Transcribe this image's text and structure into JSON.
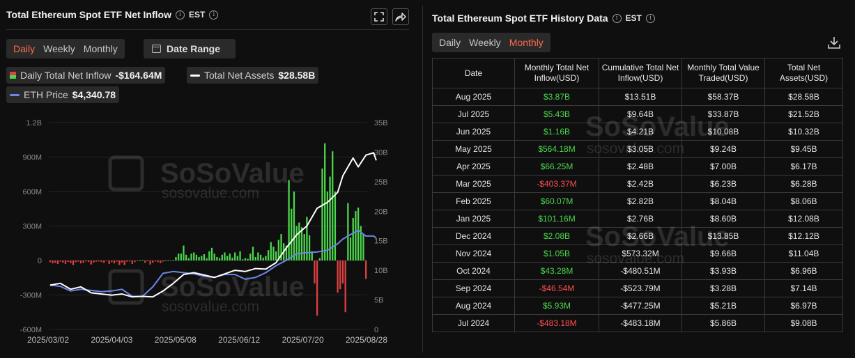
{
  "left": {
    "title": "Total Ethereum Spot ETF Net Inflow",
    "timezone": "EST",
    "tabs": [
      "Daily",
      "Weekly",
      "Monthly"
    ],
    "active_tab": "Daily",
    "date_range_label": "Date Range",
    "legend": {
      "inflow_label": "Daily Total Net Inflow",
      "inflow_value": "-$164.64M",
      "assets_label": "Total Net Assets",
      "assets_value": "$28.58B",
      "eth_label": "ETH Price",
      "eth_value": "$4,340.78"
    },
    "watermark": {
      "brand": "SoSoValue",
      "site": "sosovalue.com"
    }
  },
  "chart_data": {
    "type": "bar",
    "x_tick_labels": [
      "2025/03/02",
      "2025/04/03",
      "2025/05/08",
      "2025/06/12",
      "2025/07/20",
      "2025/08/28"
    ],
    "left_axis_ticks": [
      "1.2B",
      "900M",
      "600M",
      "300M",
      "0",
      "-300M",
      "-600M"
    ],
    "right_axis_ticks": [
      "35B",
      "30B",
      "25B",
      "20B",
      "15B",
      "10B",
      "5B",
      "0"
    ],
    "left_axis_range_millions": [
      -600,
      1200
    ],
    "right_axis_range_billions": [
      0,
      35
    ],
    "series": [
      {
        "name": "Daily Total Net Inflow",
        "axis": "left",
        "unit": "millions USD",
        "values": [
          -14,
          -25,
          -20,
          -30,
          -10,
          -18,
          -30,
          -12,
          -22,
          -40,
          -15,
          -10,
          -25,
          -20,
          -8,
          -12,
          -35,
          -18,
          -10,
          -8,
          -14,
          -20,
          -5,
          -30,
          -15,
          -25,
          -10,
          -38,
          -18,
          -40,
          -10,
          -8,
          -30,
          -14,
          -5,
          0,
          5,
          -20,
          0,
          -35,
          -20,
          -8,
          -14,
          -22,
          -10,
          0,
          0,
          -5,
          5,
          30,
          60,
          60,
          130,
          50,
          20,
          60,
          70,
          50,
          30,
          40,
          55,
          20,
          80,
          110,
          60,
          30,
          20,
          50,
          70,
          40,
          60,
          25,
          70,
          40,
          80,
          10,
          20,
          15,
          60,
          120,
          30,
          70,
          50,
          25,
          40,
          90,
          160,
          120,
          80,
          180,
          230,
          150,
          130,
          700,
          450,
          600,
          300,
          330,
          290,
          230,
          380,
          220,
          80,
          -200,
          -480,
          20,
          800,
          1020,
          600,
          730,
          950,
          600,
          -280,
          -250,
          -200,
          -450,
          500,
          200,
          370,
          430,
          460,
          300,
          230,
          -160
        ],
        "colors": {
          "positive": "#4cd64c",
          "negative": "#e04040"
        }
      },
      {
        "name": "Total Net Assets",
        "axis": "right",
        "unit": "billions USD",
        "color": "#ffffff",
        "points": [
          [
            0,
            7.5
          ],
          [
            4,
            7.8
          ],
          [
            8,
            6.8
          ],
          [
            12,
            7.2
          ],
          [
            16,
            6.2
          ],
          [
            20,
            6.0
          ],
          [
            24,
            5.8
          ],
          [
            28,
            6.0
          ],
          [
            32,
            5.5
          ],
          [
            36,
            5.6
          ],
          [
            40,
            5.5
          ],
          [
            44,
            6.5
          ],
          [
            48,
            7.8
          ],
          [
            52,
            9.3
          ],
          [
            56,
            9.6
          ],
          [
            60,
            9.2
          ],
          [
            64,
            8.8
          ],
          [
            68,
            9.4
          ],
          [
            72,
            10.0
          ],
          [
            76,
            9.8
          ],
          [
            80,
            10.3
          ],
          [
            84,
            10.2
          ],
          [
            88,
            11.3
          ],
          [
            92,
            13.8
          ],
          [
            96,
            16.0
          ],
          [
            100,
            17.5
          ],
          [
            104,
            20.5
          ],
          [
            108,
            21.5
          ],
          [
            112,
            23.2
          ],
          [
            114,
            26.0
          ],
          [
            118,
            29.0
          ],
          [
            120,
            27.5
          ],
          [
            123,
            29.5
          ],
          [
            126,
            29.9
          ],
          [
            127,
            28.6
          ]
        ]
      },
      {
        "name": "ETH Price",
        "axis": "right",
        "unit": "price (scaled to right axis)",
        "color": "#6f86e8",
        "points": [
          [
            0,
            7.5
          ],
          [
            4,
            7.3
          ],
          [
            8,
            6.5
          ],
          [
            12,
            6.8
          ],
          [
            16,
            6.6
          ],
          [
            20,
            6.4
          ],
          [
            24,
            6.5
          ],
          [
            28,
            6.8
          ],
          [
            32,
            5.6
          ],
          [
            36,
            5.6
          ],
          [
            40,
            7.2
          ],
          [
            44,
            9.5
          ],
          [
            48,
            9.8
          ],
          [
            52,
            9.6
          ],
          [
            56,
            9.4
          ],
          [
            60,
            9.0
          ],
          [
            64,
            8.8
          ],
          [
            68,
            9.3
          ],
          [
            72,
            9.3
          ],
          [
            76,
            8.5
          ],
          [
            80,
            8.8
          ],
          [
            84,
            9.6
          ],
          [
            88,
            10.8
          ],
          [
            92,
            11.7
          ],
          [
            96,
            12.8
          ],
          [
            100,
            13.0
          ],
          [
            104,
            13.1
          ],
          [
            108,
            13.4
          ],
          [
            112,
            14.5
          ],
          [
            114,
            15.3
          ],
          [
            118,
            16.3
          ],
          [
            120,
            16.8
          ],
          [
            123,
            15.8
          ],
          [
            126,
            15.8
          ],
          [
            127,
            15.5
          ]
        ]
      }
    ]
  },
  "right": {
    "title": "Total Ethereum Spot ETF History Data",
    "timezone": "EST",
    "tabs": [
      "Daily",
      "Weekly",
      "Monthly"
    ],
    "active_tab": "Monthly",
    "columns": [
      "Date",
      "Monthly Total Net Inflow(USD)",
      "Cumulative Total Net Inflow(USD)",
      "Monthly Total Value Traded(USD)",
      "Total Net Assets(USD)"
    ],
    "rows": [
      [
        "Aug 2025",
        "$3.87B",
        "$13.51B",
        "$58.37B",
        "$28.58B"
      ],
      [
        "Jul 2025",
        "$5.43B",
        "$9.64B",
        "$33.87B",
        "$21.52B"
      ],
      [
        "Jun 2025",
        "$1.16B",
        "$4.21B",
        "$10.08B",
        "$10.32B"
      ],
      [
        "May 2025",
        "$564.18M",
        "$3.05B",
        "$9.24B",
        "$9.45B"
      ],
      [
        "Apr 2025",
        "$66.25M",
        "$2.48B",
        "$7.00B",
        "$6.17B"
      ],
      [
        "Mar 2025",
        "-$403.37M",
        "$2.42B",
        "$6.23B",
        "$6.28B"
      ],
      [
        "Feb 2025",
        "$60.07M",
        "$2.82B",
        "$8.04B",
        "$8.06B"
      ],
      [
        "Jan 2025",
        "$101.16M",
        "$2.76B",
        "$8.60B",
        "$12.08B"
      ],
      [
        "Dec 2024",
        "$2.08B",
        "$2.66B",
        "$13.85B",
        "$12.12B"
      ],
      [
        "Nov 2024",
        "$1.05B",
        "$573.32M",
        "$9.66B",
        "$11.04B"
      ],
      [
        "Oct 2024",
        "$43.28M",
        "-$480.51M",
        "$3.93B",
        "$6.96B"
      ],
      [
        "Sep 2024",
        "-$46.54M",
        "-$523.79M",
        "$3.28B",
        "$7.14B"
      ],
      [
        "Aug 2024",
        "$5.93M",
        "-$477.25M",
        "$5.21B",
        "$6.97B"
      ],
      [
        "Jul 2024",
        "-$483.18M",
        "-$483.18M",
        "$5.86B",
        "$9.08B"
      ]
    ],
    "watermark": {
      "brand": "SoSoValue",
      "site": "sosovalue.com"
    }
  },
  "icons": {
    "expand": "expand-icon",
    "share": "share-icon",
    "download": "download-icon",
    "info": "info-icon",
    "calendar": "calendar-icon"
  }
}
